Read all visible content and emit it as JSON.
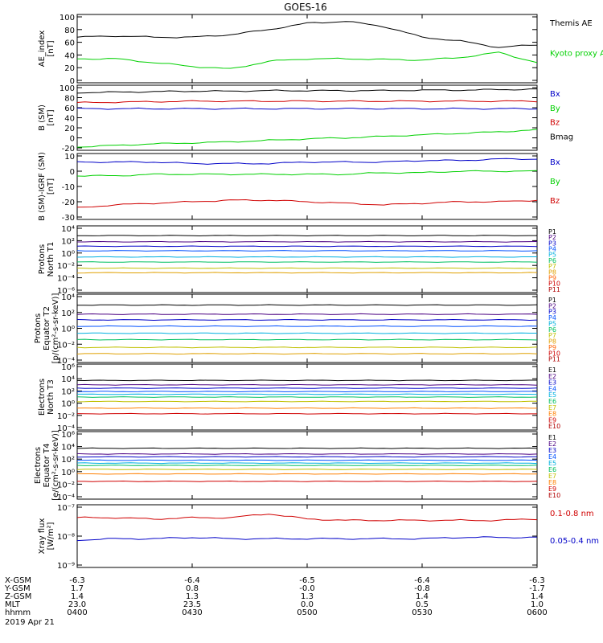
{
  "title": "GOES-16",
  "colors": {
    "black": "#000000",
    "green": "#00d000",
    "blue": "#0000c8",
    "red": "#d00000"
  },
  "chart_data": [
    {
      "type": "line",
      "ylabel": [
        "AE_index",
        "[nT]"
      ],
      "yticks": [
        "100",
        "80",
        "60",
        "40",
        "20",
        "0"
      ],
      "ylim": [
        0,
        100
      ],
      "x": [
        "0400",
        "0410",
        "0420",
        "0430",
        "0440",
        "0450",
        "0500",
        "0510",
        "0520",
        "0530",
        "0540",
        "0550",
        "0600"
      ],
      "series": [
        {
          "name": "Themis AE",
          "color": "#000000",
          "values": [
            68,
            70,
            68,
            68,
            72,
            80,
            90,
            93,
            85,
            68,
            62,
            52,
            56
          ]
        },
        {
          "name": "Kyoto proxy AE",
          "color": "#00d000",
          "values": [
            34,
            34,
            28,
            22,
            18,
            30,
            34,
            34,
            33,
            32,
            36,
            44,
            28
          ]
        }
      ],
      "legend": [
        "Kyoto proxy AE",
        "Themis AE"
      ]
    },
    {
      "type": "line",
      "ylabel": [
        "B (SM)",
        "[nT]"
      ],
      "yticks": [
        "100",
        "80",
        "60",
        "40",
        "20",
        "0",
        "-20"
      ],
      "ylim": [
        -20,
        100
      ],
      "series": [
        {
          "name": "Bx",
          "color": "#0000c8",
          "values": [
            58,
            58,
            58,
            58,
            58,
            58,
            58,
            58,
            58,
            58,
            58,
            58,
            58
          ]
        },
        {
          "name": "By",
          "color": "#00d000",
          "values": [
            -18,
            -15,
            -12,
            -10,
            -8,
            -5,
            -2,
            0,
            3,
            6,
            9,
            12,
            16
          ]
        },
        {
          "name": "Bz",
          "color": "#d00000",
          "values": [
            70,
            71,
            72,
            73,
            73,
            73,
            73,
            73,
            73,
            73,
            73,
            73,
            73
          ]
        },
        {
          "name": "Bmag",
          "color": "#000000",
          "values": [
            90,
            91,
            92,
            93,
            93,
            94,
            94,
            94,
            94,
            95,
            95,
            96,
            97
          ]
        }
      ],
      "legend": [
        "Bx",
        "By",
        "Bz",
        "Bmag"
      ]
    },
    {
      "type": "line",
      "ylabel": [
        "B (SM)-IGRF (SM)",
        "[nT]"
      ],
      "yticks": [
        "10",
        "0",
        "-10",
        "-20",
        "-30"
      ],
      "ylim": [
        -30,
        10
      ],
      "series": [
        {
          "name": "Bx",
          "color": "#0000c8",
          "values": [
            6,
            6,
            6,
            5,
            5,
            5,
            6,
            6,
            6,
            7,
            7,
            8,
            8
          ]
        },
        {
          "name": "By",
          "color": "#00d000",
          "values": [
            -3,
            -3,
            -2,
            -2,
            -2,
            -2,
            -2,
            -2,
            -1,
            -1,
            0,
            0,
            0
          ]
        },
        {
          "name": "Bz",
          "color": "#d00000",
          "values": [
            -24,
            -22,
            -21,
            -20,
            -19,
            -19,
            -20,
            -21,
            -22,
            -21,
            -20,
            -20,
            -19
          ]
        }
      ],
      "legend": [
        "Bx",
        "By",
        "Bz"
      ]
    },
    {
      "type": "line",
      "ylabel": [
        "Protons",
        "North T1"
      ],
      "yticks": [
        "10⁴",
        "10²",
        "10⁰",
        "10⁻²",
        "10⁻⁴",
        "10⁻⁶"
      ],
      "log_range": [
        -6.5,
        4.5
      ],
      "channels": [
        "P1",
        "P2",
        "P3",
        "P4",
        "P5",
        "P6",
        "P7",
        "P8",
        "P9",
        "P10",
        "P11"
      ],
      "channel_colors": [
        "#000000",
        "#4b0082",
        "#0000c8",
        "#0050ff",
        "#00b0e0",
        "#00c060",
        "#c0c000",
        "#e0a000",
        "#ff6000",
        "#d00000",
        "#b00000"
      ],
      "levels_log10": [
        3.2,
        2.1,
        1.3,
        0.5,
        -0.6,
        -1.5,
        -2.6,
        -3.4
      ]
    },
    {
      "type": "line",
      "ylabel": [
        "Protons",
        "Equator T2",
        "[p/(cm²-s-sr-keV)]"
      ],
      "yticks": [
        "10⁴",
        "10²",
        "10⁰",
        "10⁻²",
        "10⁻⁴"
      ],
      "log_range": [
        -4.5,
        4.5
      ],
      "channels": [
        "P1",
        "P2",
        "P3",
        "P4",
        "P5",
        "P6",
        "P7",
        "P8",
        "P9",
        "P10",
        "P11"
      ],
      "channel_colors": [
        "#000000",
        "#4b0082",
        "#0000c8",
        "#0050ff",
        "#00b0e0",
        "#00c060",
        "#c0c000",
        "#e0a000",
        "#ff6000",
        "#d00000",
        "#b00000"
      ],
      "levels_log10": [
        3.3,
        2.0,
        1.2,
        0.3,
        -0.7,
        -1.6,
        -2.7,
        -3.6
      ]
    },
    {
      "type": "line",
      "ylabel": [
        "Electrons",
        "North T3"
      ],
      "yticks": [
        "10⁶",
        "10⁴",
        "10²",
        "10⁰",
        "10⁻²",
        "10⁻⁴"
      ],
      "log_range": [
        -4.5,
        6.5
      ],
      "channels": [
        "E1",
        "E2",
        "E3",
        "E4",
        "E5",
        "E6",
        "E7",
        "E8",
        "E9",
        "E10"
      ],
      "channel_colors": [
        "#000000",
        "#4b0082",
        "#0000c8",
        "#0050ff",
        "#00b0e0",
        "#00c060",
        "#c0c000",
        "#ff8000",
        "#d00000",
        "#b00000"
      ],
      "levels_log10": [
        4.0,
        3.2,
        2.6,
        2.0,
        1.5,
        1.0,
        0.2,
        -1.0,
        -2.0
      ]
    },
    {
      "type": "line",
      "ylabel": [
        "Electrons",
        "Equator T4",
        "[e/(cm²-s-sr-keV)]"
      ],
      "yticks": [
        "10⁶",
        "10⁴",
        "10²",
        "10⁰",
        "10⁻²",
        "10⁻⁴"
      ],
      "log_range": [
        -4.5,
        6.5
      ],
      "channels": [
        "E1",
        "E2",
        "E3",
        "E4",
        "E5",
        "E6",
        "E7",
        "E8",
        "E9",
        "E10"
      ],
      "channel_colors": [
        "#000000",
        "#4b0082",
        "#0000c8",
        "#0050ff",
        "#00b0e0",
        "#00c060",
        "#c0c000",
        "#ff8000",
        "#d00000",
        "#b00000"
      ],
      "levels_log10": [
        4.0,
        3.0,
        2.5,
        1.9,
        1.4,
        1.0,
        0.3,
        -0.5,
        -1.8
      ]
    },
    {
      "type": "line",
      "ylabel": [
        "Xray flux",
        "[W/m²]"
      ],
      "yticks": [
        "10⁻⁷",
        "10⁻⁸",
        "10⁻⁹"
      ],
      "log_range": [
        -9.1,
        -6.9
      ],
      "series": [
        {
          "name": "0.1-0.8 nm",
          "color": "#d00000",
          "values_log10": [
            -7.3,
            -7.3,
            -7.35,
            -7.3,
            -7.3,
            -7.15,
            -7.35,
            -7.4,
            -7.4,
            -7.4,
            -7.4,
            -7.4,
            -7.35
          ]
        },
        {
          "name": "0.05-0.4 nm",
          "color": "#0000c8",
          "values_log10": [
            -8.15,
            -8.1,
            -8.1,
            -8.05,
            -8.1,
            -8.1,
            -8.1,
            -8.1,
            -8.1,
            -8.1,
            -8.05,
            -8.05,
            -8.05
          ]
        }
      ],
      "legend": [
        "0.1-0.8 nm",
        "0.05-0.4 nm"
      ]
    }
  ],
  "orbit_table": {
    "rows": [
      {
        "label": "X-GSM",
        "values": [
          "-6.3",
          "-6.4",
          "-6.5",
          "-6.4",
          "-6.3"
        ]
      },
      {
        "label": "Y-GSM",
        "values": [
          "1.7",
          "0.8",
          "-0.0",
          "-0.8",
          "-1.7"
        ]
      },
      {
        "label": "Z-GSM",
        "values": [
          "1.4",
          "1.3",
          "1.3",
          "1.4",
          "1.4"
        ]
      },
      {
        "label": "MLT",
        "values": [
          "23.0",
          "23.5",
          "0.0",
          "0.5",
          "1.0"
        ]
      },
      {
        "label": "hhmm",
        "values": [
          "0400",
          "0430",
          "0500",
          "0530",
          "0600"
        ]
      }
    ],
    "date": "2019 Apr 21"
  }
}
